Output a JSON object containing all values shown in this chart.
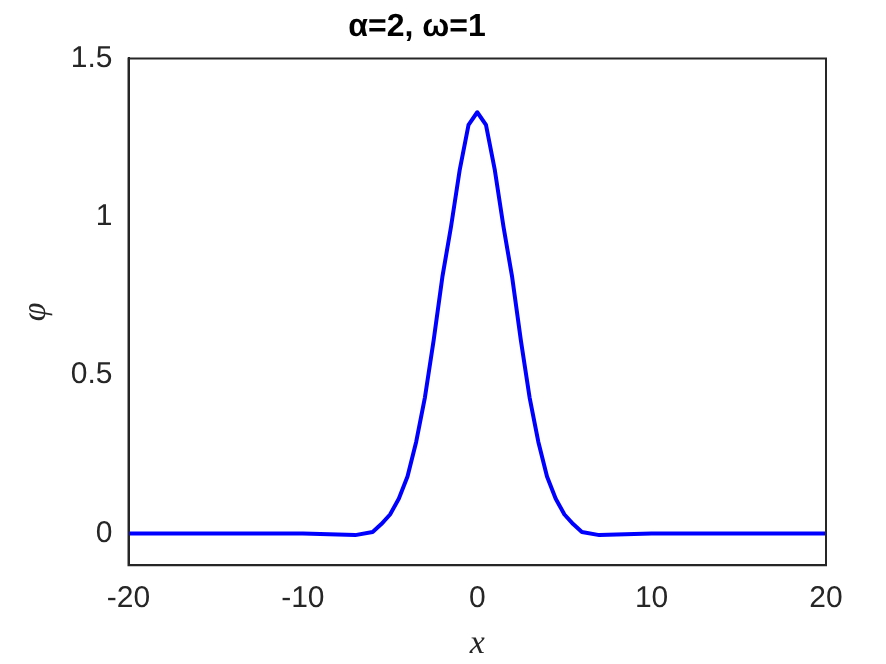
{
  "chart_data": {
    "type": "line",
    "title": "α=2, ω=1",
    "xlabel": "x",
    "ylabel": "φ",
    "series": [
      {
        "color": "#0000ff",
        "x": [
          -20,
          -15,
          -10,
          -8,
          -7,
          -6,
          -5.5,
          -5,
          -4.5,
          -4,
          -3.5,
          -3,
          -2.5,
          -2,
          -1.5,
          -1,
          -0.5,
          0,
          0.5,
          1,
          1.5,
          2,
          2.5,
          3,
          3.5,
          4,
          4.5,
          5,
          5.5,
          6,
          7,
          8,
          10,
          15,
          20
        ],
        "values": [
          0,
          0,
          0,
          -0.003,
          -0.005,
          0.005,
          0.03,
          0.06,
          0.11,
          0.18,
          0.29,
          0.43,
          0.61,
          0.81,
          0.97,
          1.15,
          1.29,
          1.33,
          1.29,
          1.15,
          0.97,
          0.81,
          0.61,
          0.43,
          0.29,
          0.18,
          0.11,
          0.06,
          0.03,
          0.005,
          -0.005,
          -0.003,
          0,
          0,
          0
        ]
      }
    ],
    "xlim": [
      -20,
      20
    ],
    "xticks": [
      -20,
      -10,
      0,
      10,
      20
    ],
    "ylim": [
      -0.1,
      1.5
    ],
    "yticks": [
      0,
      0.5,
      1,
      1.5
    ],
    "grid": false,
    "legend": false,
    "marker": "none",
    "line_style": "solid"
  }
}
